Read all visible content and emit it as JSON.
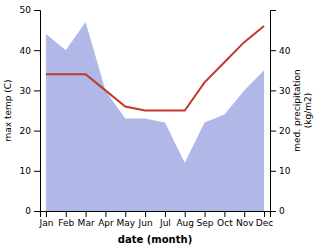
{
  "chart_data": {
    "type": "line",
    "x_label": "date (month)",
    "y_label": "max temp (C)",
    "y2_label": "med. precipitation\n(kg/m2)",
    "categories": [
      "Jan",
      "Feb",
      "Mar",
      "Apr",
      "May",
      "Jun",
      "Jul",
      "Aug",
      "Sep",
      "Oct",
      "Nov",
      "Dec"
    ],
    "series": [
      {
        "type": "area",
        "color": "#b0b8e8",
        "values": [
          44,
          40,
          47,
          30,
          23,
          23,
          22,
          12,
          22,
          24,
          30,
          35
        ]
      },
      {
        "type": "line",
        "color": "#c0392b",
        "values": [
          34,
          34,
          34,
          30,
          26,
          25,
          25,
          25,
          32,
          37,
          42,
          46
        ]
      }
    ],
    "ylim": [
      0,
      50
    ],
    "yticks": [
      0,
      10,
      20,
      30,
      40,
      50
    ],
    "y2lim": [
      0,
      50
    ],
    "y2ticks": [
      0,
      10,
      20,
      30,
      40
    ],
    "grid": false
  }
}
